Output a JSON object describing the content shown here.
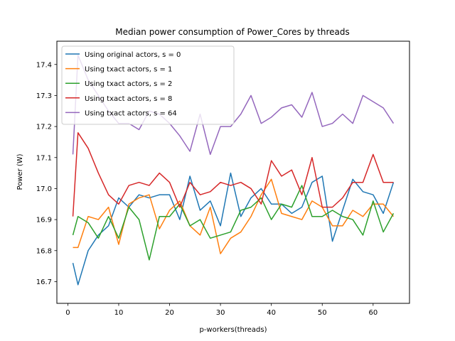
{
  "chart_data": {
    "type": "line",
    "title": "Median power consumption of Power_Cores by threads",
    "xlabel": "p-workers(threads)",
    "ylabel": "Power (W)",
    "xlim": [
      -2.15,
      67.15
    ],
    "ylim": [
      16.63,
      17.475
    ],
    "xticks": [
      0,
      10,
      20,
      30,
      40,
      50,
      60
    ],
    "xtick_labels": [
      "0",
      "10",
      "20",
      "30",
      "40",
      "50",
      "60"
    ],
    "yticks": [
      16.7,
      16.8,
      16.9,
      17.0,
      17.1,
      17.2,
      17.3,
      17.4
    ],
    "ytick_labels": [
      "16.7",
      "16.8",
      "16.9",
      "17.0",
      "17.1",
      "17.2",
      "17.3",
      "17.4"
    ],
    "grid": false,
    "legend_position": "top-left",
    "x": [
      1,
      2,
      4,
      6,
      8,
      10,
      12,
      14,
      16,
      18,
      20,
      22,
      24,
      26,
      28,
      30,
      32,
      34,
      36,
      38,
      40,
      42,
      44,
      46,
      48,
      50,
      52,
      54,
      56,
      58,
      60,
      62,
      64
    ],
    "series": [
      {
        "name": "Using original actors, s = 0",
        "color": "#1f77b4",
        "values": [
          16.76,
          16.69,
          16.8,
          16.85,
          16.88,
          16.97,
          16.94,
          16.98,
          16.97,
          16.98,
          16.98,
          16.9,
          17.04,
          16.93,
          16.96,
          16.88,
          17.05,
          16.91,
          16.97,
          17.0,
          16.95,
          16.95,
          16.92,
          16.94,
          17.02,
          17.04,
          16.83,
          16.93,
          17.03,
          16.99,
          16.98,
          16.92,
          17.02
        ]
      },
      {
        "name": "Using txact actors, s = 1",
        "color": "#ff7f0e",
        "values": [
          16.81,
          16.81,
          16.91,
          16.9,
          16.94,
          16.82,
          16.95,
          16.97,
          16.98,
          16.87,
          16.93,
          16.96,
          16.88,
          16.85,
          16.94,
          16.79,
          16.84,
          16.86,
          16.91,
          16.98,
          17.03,
          16.92,
          16.91,
          16.9,
          16.96,
          16.94,
          16.88,
          16.88,
          16.93,
          16.91,
          16.95,
          16.95,
          16.91
        ]
      },
      {
        "name": "Using txact actors, s = 2",
        "color": "#2ca02c",
        "values": [
          16.85,
          16.91,
          16.89,
          16.84,
          16.91,
          16.84,
          16.94,
          16.9,
          16.77,
          16.91,
          16.91,
          16.95,
          16.88,
          16.9,
          16.84,
          16.85,
          16.86,
          16.93,
          16.94,
          16.97,
          16.9,
          16.95,
          16.94,
          17.01,
          16.91,
          16.91,
          16.93,
          16.91,
          16.9,
          16.85,
          16.96,
          16.86,
          16.92
        ]
      },
      {
        "name": "Using txact actors, s = 8",
        "color": "#d62728",
        "values": [
          16.91,
          17.18,
          17.13,
          17.05,
          16.98,
          16.95,
          17.01,
          17.02,
          17.01,
          17.05,
          17.02,
          16.94,
          17.02,
          16.98,
          16.99,
          17.02,
          17.01,
          17.02,
          17.0,
          16.95,
          17.09,
          17.04,
          17.06,
          16.98,
          17.1,
          16.94,
          16.94,
          16.97,
          17.02,
          17.02,
          17.11,
          17.02,
          17.02
        ]
      },
      {
        "name": "Using txact actors, s = 64",
        "color": "#9467bd",
        "values": [
          17.11,
          17.43,
          17.35,
          17.3,
          17.25,
          17.21,
          17.21,
          17.19,
          17.25,
          17.24,
          17.21,
          17.17,
          17.12,
          17.24,
          17.11,
          17.2,
          17.2,
          17.24,
          17.3,
          17.21,
          17.23,
          17.26,
          17.27,
          17.23,
          17.31,
          17.2,
          17.21,
          17.24,
          17.21,
          17.3,
          17.28,
          17.26,
          17.21
        ]
      }
    ]
  }
}
